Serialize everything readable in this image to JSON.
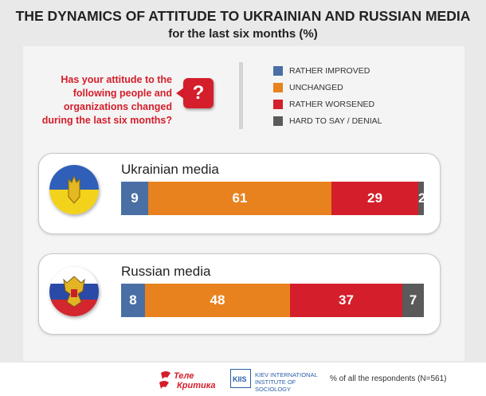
{
  "title": "THE DYNAMICS OF ATTITUDE TO UKRAINIAN AND RUSSIAN MEDIA",
  "subtitle": "for the last six months (%)",
  "question": "Has your attitude to the following people and organizations changed during the last six months?",
  "question_mark": "?",
  "legend": [
    {
      "label": "RATHER IMPROVED",
      "color": "#4a6fa5"
    },
    {
      "label": "UNCHANGED",
      "color": "#e8821e"
    },
    {
      "label": "RATHER WORSENED",
      "color": "#d41e2b"
    },
    {
      "label": "HARD TO SAY / DENIAL",
      "color": "#5a5a5a"
    }
  ],
  "chart_data": {
    "type": "bar",
    "stacked": true,
    "orientation": "horizontal",
    "categories": [
      "Ukrainian media",
      "Russian media"
    ],
    "series": [
      {
        "name": "RATHER IMPROVED",
        "values": [
          9,
          8
        ]
      },
      {
        "name": "UNCHANGED",
        "values": [
          61,
          48
        ]
      },
      {
        "name": "RATHER WORSENED",
        "values": [
          29,
          37
        ]
      },
      {
        "name": "HARD TO SAY / DENIAL",
        "values": [
          2,
          7
        ]
      }
    ],
    "title": "THE DYNAMICS OF ATTITUDE TO UKRAINIAN AND RUSSIAN MEDIA",
    "subtitle": "for the last six months (%)",
    "legend_position": "top-right"
  },
  "footer": {
    "logo_tk": "Теле Критика",
    "kiis_mark": "KIIS",
    "kiis_line1": "KIEV INTERNATIONAL",
    "kiis_line2": "INSTITUTE OF SOCIOLOGY",
    "note": "% of all the respondents (N=561)"
  }
}
